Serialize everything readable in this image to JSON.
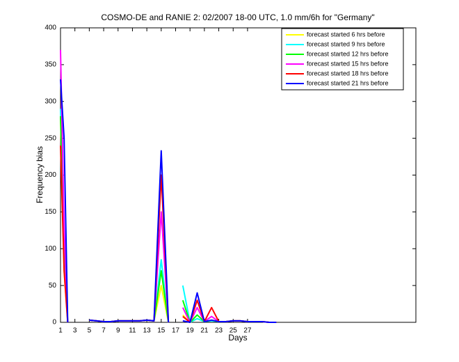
{
  "chart_data": {
    "type": "line",
    "title": "COSMO-DE and RANIE 2: 02/2007 18-00 UTC, 1.0 mm/6h for \"Germany\"",
    "xlabel": "Days",
    "ylabel": "Frequency bias",
    "x": [
      1,
      1.5,
      2,
      3,
      4,
      5,
      6,
      7,
      8,
      9,
      10,
      11,
      12,
      13,
      14,
      15,
      16,
      17,
      18,
      19,
      20,
      21,
      22,
      23,
      24,
      25,
      26,
      27,
      28,
      29,
      30,
      31
    ],
    "series": [
      {
        "name": "forecast started 6 hrs before",
        "color": "#ffff00",
        "values": [
          280,
          70,
          0,
          null,
          null,
          3,
          2,
          1,
          1,
          2,
          2,
          2,
          2,
          3,
          2,
          50,
          0,
          null,
          10,
          0,
          5,
          1,
          2,
          1,
          1,
          2,
          2,
          1,
          1,
          1,
          0,
          0
        ]
      },
      {
        "name": "forecast started 9 hrs before",
        "color": "#00ffff",
        "values": [
          290,
          100,
          0,
          null,
          null,
          3,
          2,
          1,
          1,
          2,
          2,
          2,
          2,
          3,
          2,
          85,
          0,
          null,
          50,
          0,
          5,
          1,
          2,
          1,
          1,
          2,
          2,
          1,
          1,
          1,
          0,
          0
        ]
      },
      {
        "name": "forecast started 12 hrs before",
        "color": "#00ff00",
        "values": [
          280,
          120,
          0,
          null,
          null,
          3,
          2,
          1,
          1,
          2,
          2,
          2,
          2,
          3,
          2,
          70,
          0,
          null,
          30,
          0,
          10,
          1,
          3,
          1,
          1,
          2,
          2,
          1,
          1,
          1,
          0,
          0
        ]
      },
      {
        "name": "forecast started 15 hrs before",
        "color": "#ff00ff",
        "values": [
          370,
          130,
          0,
          null,
          null,
          3,
          2,
          1,
          1,
          2,
          2,
          2,
          2,
          3,
          2,
          150,
          0,
          null,
          20,
          0,
          20,
          1,
          8,
          1,
          1,
          2,
          2,
          1,
          1,
          1,
          0,
          0
        ]
      },
      {
        "name": "forecast started 18 hrs before",
        "color": "#ff0000",
        "values": [
          240,
          70,
          0,
          null,
          null,
          3,
          2,
          1,
          1,
          2,
          2,
          2,
          2,
          3,
          2,
          200,
          0,
          null,
          8,
          0,
          30,
          1,
          20,
          1,
          1,
          2,
          2,
          1,
          1,
          1,
          0,
          0
        ]
      },
      {
        "name": "forecast started 21 hrs before",
        "color": "#0000ff",
        "values": [
          330,
          250,
          0,
          null,
          null,
          3,
          2,
          1,
          1,
          2,
          2,
          2,
          2,
          3,
          2,
          233,
          0,
          null,
          2,
          0,
          40,
          1,
          3,
          1,
          1,
          2,
          2,
          1,
          1,
          1,
          0,
          0
        ]
      }
    ],
    "xlim": [
      1,
      50.4
    ],
    "ylim": [
      0,
      400
    ],
    "xticks": [
      1,
      3,
      5,
      7,
      9,
      11,
      13,
      15,
      17,
      19,
      21,
      23,
      25,
      27
    ],
    "yticks": [
      0,
      50,
      100,
      150,
      200,
      250,
      300,
      350,
      400
    ],
    "legend": "northeast",
    "grid": false
  }
}
